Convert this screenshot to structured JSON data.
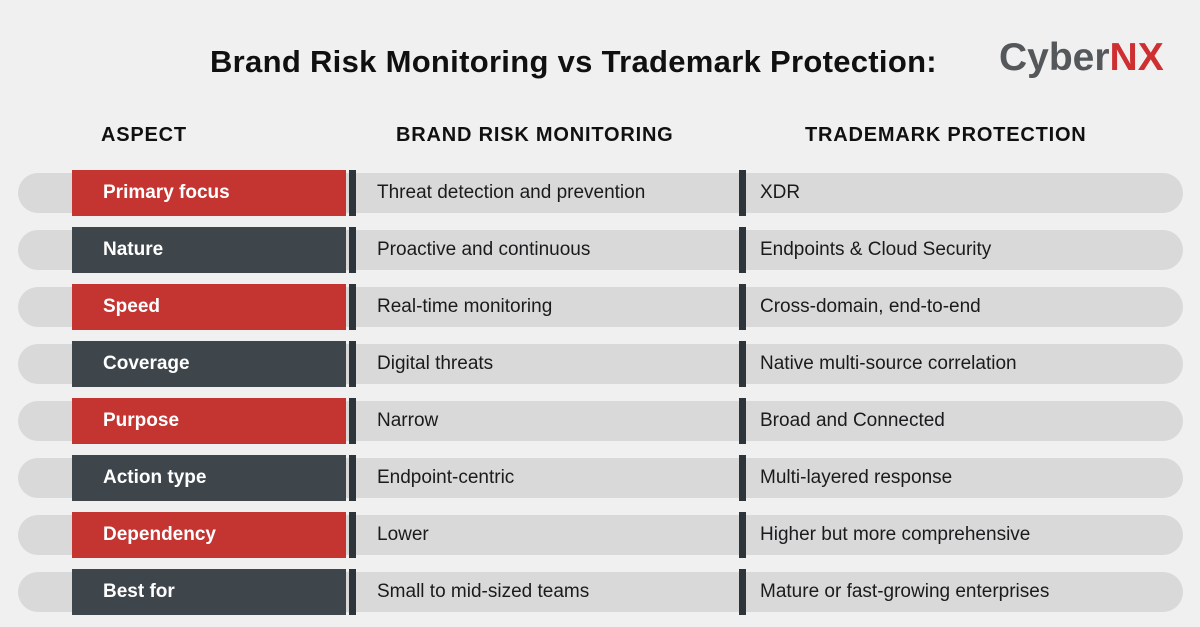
{
  "title": "Brand Risk Monitoring vs Trademark Protection:",
  "logo": {
    "gray_part": "Cyber",
    "red_part": "NX"
  },
  "columns": {
    "aspect": "ASPECT",
    "brand_risk_monitoring": "BRAND RISK MONITORING",
    "trademark_protection": "TRADEMARK PROTECTION"
  },
  "rows": [
    {
      "aspect": "Primary focus",
      "variant": "red",
      "brand_risk_monitoring": "Threat detection and prevention",
      "trademark_protection": "XDR"
    },
    {
      "aspect": "Nature",
      "variant": "dark",
      "brand_risk_monitoring": "Proactive and continuous",
      "trademark_protection": "Endpoints & Cloud Security"
    },
    {
      "aspect": "Speed",
      "variant": "red",
      "brand_risk_monitoring": "Real-time monitoring",
      "trademark_protection": "Cross-domain, end-to-end"
    },
    {
      "aspect": "Coverage",
      "variant": "dark",
      "brand_risk_monitoring": "Digital threats",
      "trademark_protection": "Native multi-source correlation"
    },
    {
      "aspect": "Purpose",
      "variant": "red",
      "brand_risk_monitoring": "Narrow",
      "trademark_protection": "Broad and Connected"
    },
    {
      "aspect": "Action type",
      "variant": "dark",
      "brand_risk_monitoring": "Endpoint-centric",
      "trademark_protection": "Multi-layered response"
    },
    {
      "aspect": "Dependency",
      "variant": "red",
      "brand_risk_monitoring": "Lower",
      "trademark_protection": "Higher but more comprehensive"
    },
    {
      "aspect": "Best for",
      "variant": "dark",
      "brand_risk_monitoring": "Small to mid-sized teams",
      "trademark_protection": "Mature or fast-growing enterprises"
    }
  ],
  "colors": {
    "background": "#f0f0f1",
    "pill": "#d9d9d9",
    "red": "#c43431",
    "charcoal": "#3f464b",
    "divider": "#2e353a",
    "title": "#101010",
    "cell_text": "#1b1b1d",
    "logo_gray": "#54585b",
    "logo_red": "#ce2f31"
  }
}
